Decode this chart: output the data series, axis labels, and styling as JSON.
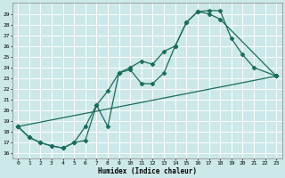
{
  "xlabel": "Humidex (Indice chaleur)",
  "bg_color": "#cce8e8",
  "grid_color": "#ffffff",
  "line_color": "#1a6b5a",
  "xlim": [
    -0.5,
    23.5
  ],
  "ylim": [
    15.5,
    30.0
  ],
  "xticks": [
    0,
    1,
    2,
    3,
    4,
    5,
    6,
    7,
    8,
    9,
    10,
    11,
    12,
    13,
    14,
    15,
    16,
    17,
    18,
    19,
    20,
    21,
    22,
    23
  ],
  "yticks": [
    16,
    17,
    18,
    19,
    20,
    21,
    22,
    23,
    24,
    25,
    26,
    27,
    28,
    29
  ],
  "line1_x": [
    0,
    1,
    2,
    3,
    4,
    5,
    6,
    7,
    8,
    9,
    10,
    11,
    12,
    13,
    14,
    15,
    16,
    17,
    18,
    19,
    20,
    21,
    23
  ],
  "line1_y": [
    18.5,
    17.5,
    17.0,
    16.7,
    16.5,
    17.0,
    17.2,
    20.5,
    21.8,
    23.5,
    24.0,
    24.6,
    24.3,
    25.5,
    26.0,
    28.2,
    29.2,
    29.3,
    29.3,
    26.7,
    25.2,
    24.0,
    23.2
  ],
  "line2_x": [
    0,
    1,
    2,
    3,
    4,
    5,
    6,
    7,
    8,
    9,
    10,
    11,
    12,
    13,
    14,
    15,
    16,
    17,
    18,
    23
  ],
  "line2_y": [
    18.5,
    17.5,
    17.0,
    16.7,
    16.5,
    17.0,
    18.5,
    20.5,
    18.5,
    23.5,
    23.8,
    22.5,
    22.5,
    23.5,
    26.0,
    28.2,
    29.2,
    29.0,
    28.5,
    23.2
  ],
  "line3_x": [
    0,
    23
  ],
  "line3_y": [
    18.5,
    23.2
  ]
}
